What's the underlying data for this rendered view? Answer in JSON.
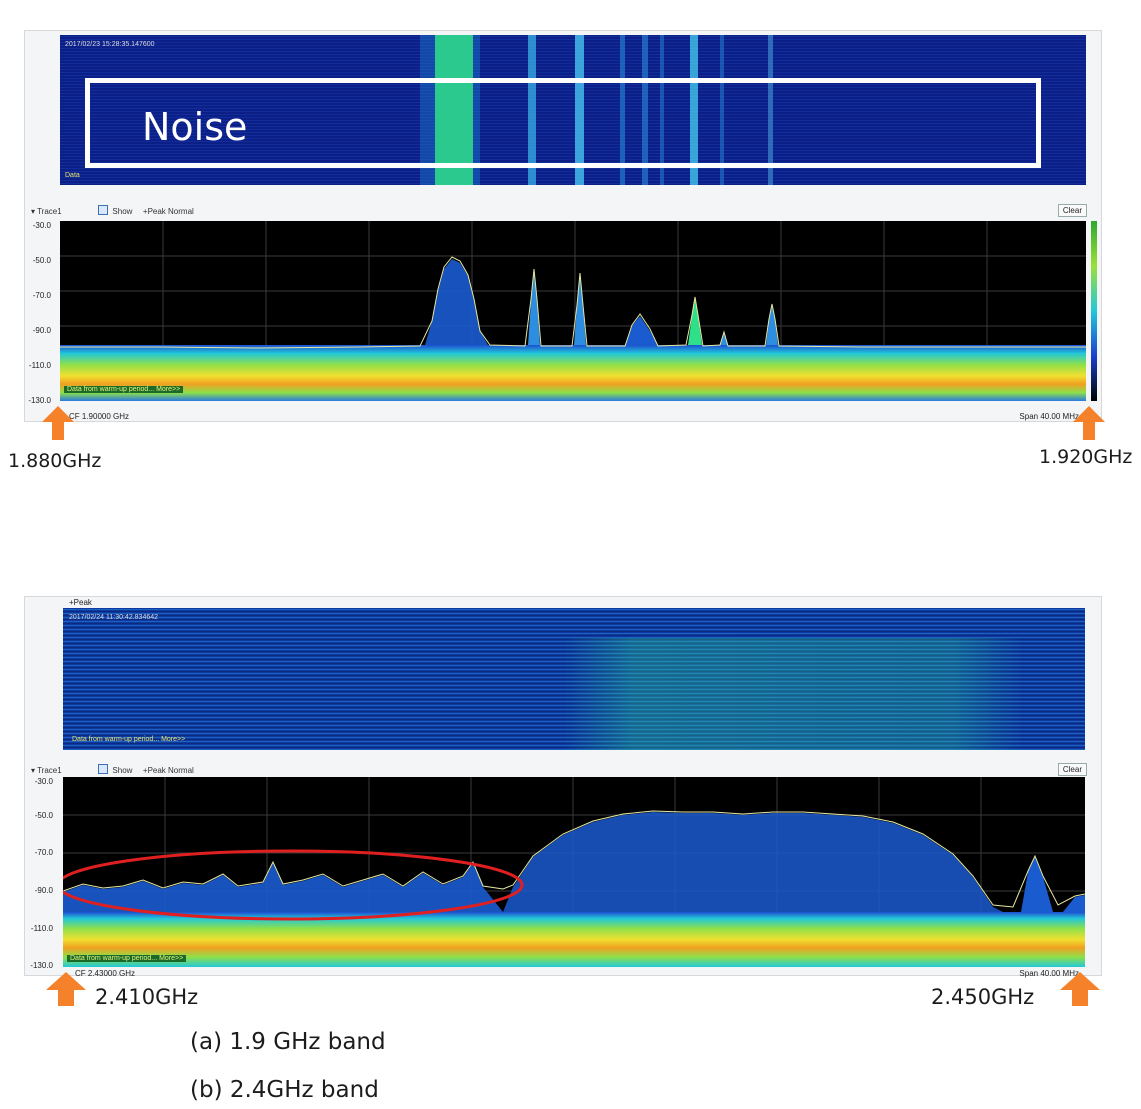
{
  "top": {
    "timestamp": "2017/02/23 15:28:35.147600",
    "noise_label": "Noise",
    "data_corner": "Data",
    "trace_label": "Trace1",
    "show_label": "Show",
    "mode_label": "+Peak Normal",
    "clear_label": "Clear",
    "y_ticks": [
      "-30.0",
      "-50.0",
      "-70.0",
      "-90.0",
      "-110.0",
      "-130.0"
    ],
    "warmup_note": "Data from warm-up period... More>>",
    "cf_label": "CF 1.90000 GHz",
    "span_label": "Span 40.00 MHz",
    "freq_left": "1.880GHz",
    "freq_right": "1.920GHz",
    "colors": {
      "waterfall_bg": "#0a1a6e",
      "plot_bg": "#000000",
      "trace": "#e8e8a0",
      "arrow": "#f5822a"
    }
  },
  "bottom": {
    "peak_label": "+Peak",
    "timestamp": "2017/02/24 11:30:42.834642",
    "warmup_note_wf": "Data from warm-up period... More>>",
    "trace_label": "Trace1",
    "show_label": "Show",
    "mode_label": "+Peak Normal",
    "clear_label": "Clear",
    "y_ticks": [
      "-30.0",
      "-50.0",
      "-70.0",
      "-90.0",
      "-110.0",
      "-130.0"
    ],
    "warmup_note": "Data from warm-up period... More>>",
    "cf_label": "CF 2.43000 GHz",
    "span_label": "Span 40.00 MHz",
    "freq_left": "2.410GHz",
    "freq_right": "2.450GHz",
    "colors": {
      "ellipse": "#e02020"
    }
  },
  "captions": {
    "a": "(a)  1.9 GHz band",
    "b": "(b)   2.4GHz band"
  }
}
